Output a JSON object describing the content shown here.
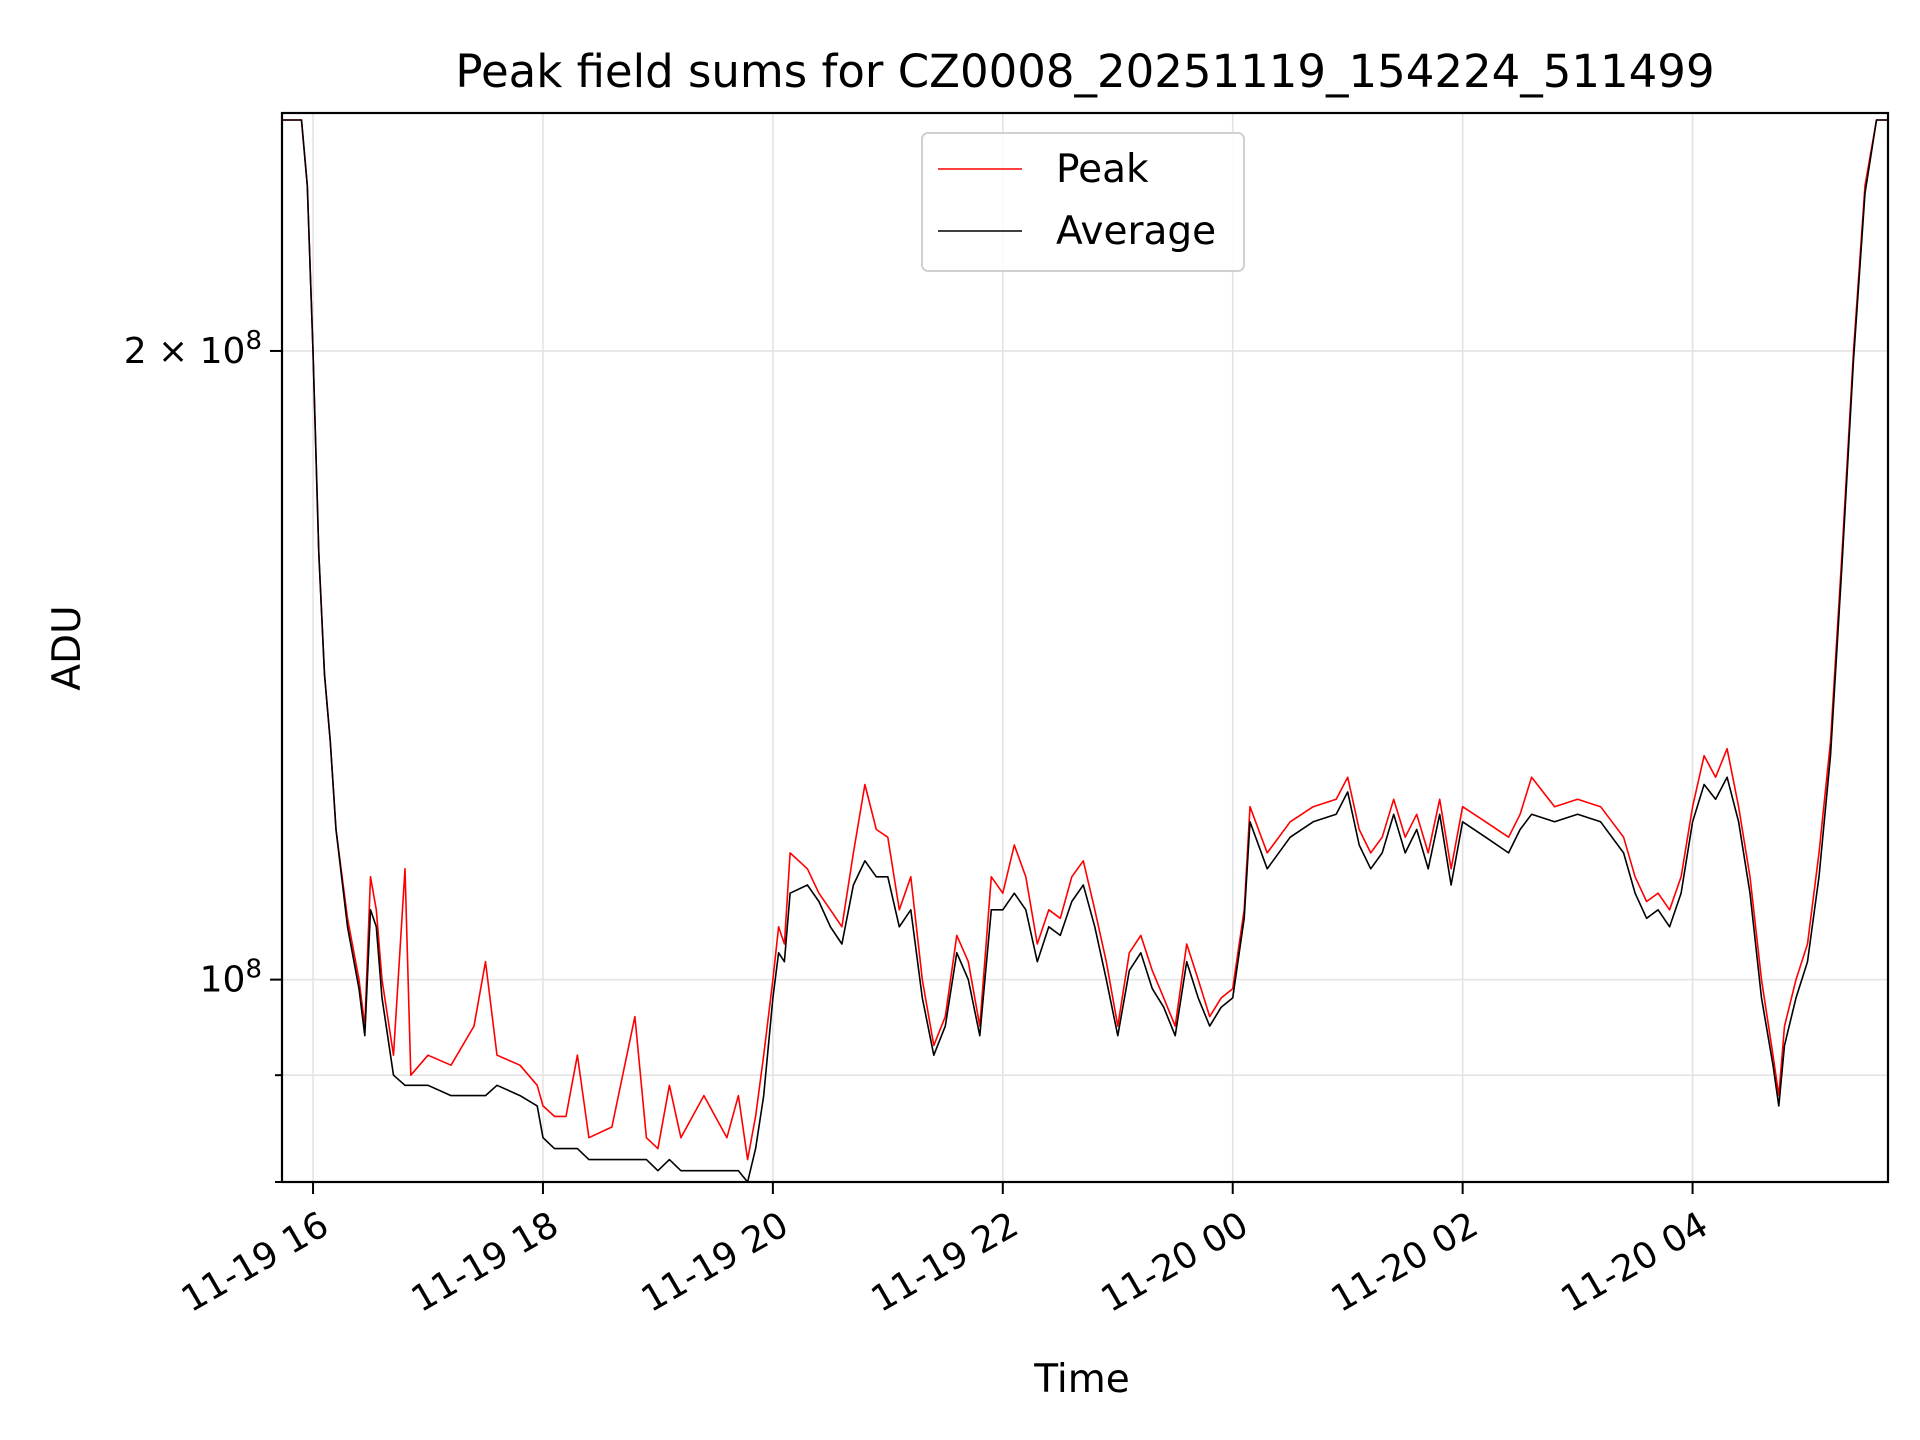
{
  "chart_data": {
    "type": "line",
    "title": "Peak field sums for CZ0008_20251119_154224_511499",
    "xlabel": "Time",
    "ylabel": "ADU",
    "yscale": "log",
    "grid": true,
    "legend_position": "top-center",
    "xlim_hours": [
      15.73,
      29.7
    ],
    "ylim": [
      80000000,
      260000000
    ],
    "x_ticks": [
      {
        "hours": 16,
        "label": "11-19 16"
      },
      {
        "hours": 18,
        "label": "11-19 18"
      },
      {
        "hours": 20,
        "label": "11-19 20"
      },
      {
        "hours": 22,
        "label": "11-19 22"
      },
      {
        "hours": 24,
        "label": "11-20 00"
      },
      {
        "hours": 26,
        "label": "11-20 02"
      },
      {
        "hours": 28,
        "label": "11-20 04"
      }
    ],
    "y_ticks_major": [
      {
        "value": 100000000,
        "label_base": "10",
        "label_exp": "8",
        "label_coef": ""
      },
      {
        "value": 200000000,
        "label_base": "10",
        "label_exp": "8",
        "label_coef": "2 × "
      }
    ],
    "y_ticks_minor": [
      90000000,
      80000000
    ],
    "colors": {
      "peak": "#ff0000",
      "average": "#000000",
      "grid": "#e3e3e3"
    },
    "series": [
      {
        "name": "Peak",
        "color": "#ff0000",
        "points": [
          [
            15.73,
            258000000
          ],
          [
            15.9,
            258000000
          ],
          [
            15.95,
            240000000
          ],
          [
            16.0,
            200000000
          ],
          [
            16.05,
            160000000
          ],
          [
            16.1,
            140000000
          ],
          [
            16.15,
            130000000
          ],
          [
            16.2,
            118000000
          ],
          [
            16.3,
            107000000
          ],
          [
            16.4,
            100000000
          ],
          [
            16.45,
            95000000
          ],
          [
            16.5,
            112000000
          ],
          [
            16.55,
            108000000
          ],
          [
            16.6,
            100000000
          ],
          [
            16.7,
            92000000
          ],
          [
            16.8,
            113000000
          ],
          [
            16.85,
            90000000
          ],
          [
            17.0,
            92000000
          ],
          [
            17.2,
            91000000
          ],
          [
            17.4,
            95000000
          ],
          [
            17.5,
            102000000
          ],
          [
            17.6,
            92000000
          ],
          [
            17.8,
            91000000
          ],
          [
            17.95,
            89000000
          ],
          [
            18.0,
            87000000
          ],
          [
            18.1,
            86000000
          ],
          [
            18.2,
            86000000
          ],
          [
            18.3,
            92000000
          ],
          [
            18.4,
            84000000
          ],
          [
            18.6,
            85000000
          ],
          [
            18.8,
            96000000
          ],
          [
            18.9,
            84000000
          ],
          [
            19.0,
            83000000
          ],
          [
            19.1,
            89000000
          ],
          [
            19.2,
            84000000
          ],
          [
            19.4,
            88000000
          ],
          [
            19.6,
            84000000
          ],
          [
            19.7,
            88000000
          ],
          [
            19.78,
            82000000
          ],
          [
            19.85,
            86000000
          ],
          [
            19.92,
            92000000
          ],
          [
            20.0,
            100000000
          ],
          [
            20.05,
            106000000
          ],
          [
            20.1,
            104000000
          ],
          [
            20.15,
            115000000
          ],
          [
            20.3,
            113000000
          ],
          [
            20.4,
            110000000
          ],
          [
            20.5,
            108000000
          ],
          [
            20.6,
            106000000
          ],
          [
            20.7,
            115000000
          ],
          [
            20.8,
            124000000
          ],
          [
            20.9,
            118000000
          ],
          [
            21.0,
            117000000
          ],
          [
            21.1,
            108000000
          ],
          [
            21.2,
            112000000
          ],
          [
            21.3,
            100000000
          ],
          [
            21.4,
            93000000
          ],
          [
            21.5,
            96000000
          ],
          [
            21.6,
            105000000
          ],
          [
            21.7,
            102000000
          ],
          [
            21.8,
            95000000
          ],
          [
            21.9,
            112000000
          ],
          [
            22.0,
            110000000
          ],
          [
            22.1,
            116000000
          ],
          [
            22.2,
            112000000
          ],
          [
            22.3,
            104000000
          ],
          [
            22.4,
            108000000
          ],
          [
            22.5,
            107000000
          ],
          [
            22.6,
            112000000
          ],
          [
            22.7,
            114000000
          ],
          [
            22.8,
            108000000
          ],
          [
            22.9,
            102000000
          ],
          [
            23.0,
            95000000
          ],
          [
            23.1,
            103000000
          ],
          [
            23.2,
            105000000
          ],
          [
            23.3,
            101000000
          ],
          [
            23.4,
            98000000
          ],
          [
            23.5,
            95000000
          ],
          [
            23.6,
            104000000
          ],
          [
            23.7,
            100000000
          ],
          [
            23.8,
            96000000
          ],
          [
            23.9,
            98000000
          ],
          [
            24.0,
            99000000
          ],
          [
            24.1,
            108000000
          ],
          [
            24.15,
            121000000
          ],
          [
            24.3,
            115000000
          ],
          [
            24.5,
            119000000
          ],
          [
            24.7,
            121000000
          ],
          [
            24.9,
            122000000
          ],
          [
            25.0,
            125000000
          ],
          [
            25.1,
            118000000
          ],
          [
            25.2,
            115000000
          ],
          [
            25.3,
            117000000
          ],
          [
            25.4,
            122000000
          ],
          [
            25.5,
            117000000
          ],
          [
            25.6,
            120000000
          ],
          [
            25.7,
            115000000
          ],
          [
            25.8,
            122000000
          ],
          [
            25.9,
            113000000
          ],
          [
            26.0,
            121000000
          ],
          [
            26.2,
            119000000
          ],
          [
            26.4,
            117000000
          ],
          [
            26.5,
            120000000
          ],
          [
            26.6,
            125000000
          ],
          [
            26.8,
            121000000
          ],
          [
            27.0,
            122000000
          ],
          [
            27.2,
            121000000
          ],
          [
            27.4,
            117000000
          ],
          [
            27.5,
            112000000
          ],
          [
            27.6,
            109000000
          ],
          [
            27.7,
            110000000
          ],
          [
            27.8,
            108000000
          ],
          [
            27.9,
            112000000
          ],
          [
            28.0,
            121000000
          ],
          [
            28.1,
            128000000
          ],
          [
            28.2,
            125000000
          ],
          [
            28.3,
            129000000
          ],
          [
            28.4,
            121000000
          ],
          [
            28.5,
            112000000
          ],
          [
            28.6,
            100000000
          ],
          [
            28.7,
            92000000
          ],
          [
            28.75,
            88000000
          ],
          [
            28.8,
            95000000
          ],
          [
            28.9,
            100000000
          ],
          [
            29.0,
            104000000
          ],
          [
            29.1,
            115000000
          ],
          [
            29.2,
            130000000
          ],
          [
            29.3,
            160000000
          ],
          [
            29.4,
            200000000
          ],
          [
            29.5,
            240000000
          ],
          [
            29.6,
            258000000
          ],
          [
            29.7,
            258000000
          ]
        ]
      },
      {
        "name": "Average",
        "color": "#000000",
        "points": [
          [
            15.73,
            258000000
          ],
          [
            15.9,
            258000000
          ],
          [
            15.95,
            240000000
          ],
          [
            16.0,
            200000000
          ],
          [
            16.05,
            160000000
          ],
          [
            16.1,
            140000000
          ],
          [
            16.15,
            130000000
          ],
          [
            16.2,
            118000000
          ],
          [
            16.3,
            106000000
          ],
          [
            16.4,
            99000000
          ],
          [
            16.45,
            94000000
          ],
          [
            16.5,
            108000000
          ],
          [
            16.55,
            106000000
          ],
          [
            16.6,
            98000000
          ],
          [
            16.7,
            90000000
          ],
          [
            16.8,
            89000000
          ],
          [
            16.85,
            89000000
          ],
          [
            17.0,
            89000000
          ],
          [
            17.2,
            88000000
          ],
          [
            17.4,
            88000000
          ],
          [
            17.5,
            88000000
          ],
          [
            17.6,
            89000000
          ],
          [
            17.8,
            88000000
          ],
          [
            17.95,
            87000000
          ],
          [
            18.0,
            84000000
          ],
          [
            18.1,
            83000000
          ],
          [
            18.2,
            83000000
          ],
          [
            18.3,
            83000000
          ],
          [
            18.4,
            82000000
          ],
          [
            18.6,
            82000000
          ],
          [
            18.8,
            82000000
          ],
          [
            18.9,
            82000000
          ],
          [
            19.0,
            81000000
          ],
          [
            19.1,
            82000000
          ],
          [
            19.2,
            81000000
          ],
          [
            19.4,
            81000000
          ],
          [
            19.6,
            81000000
          ],
          [
            19.7,
            81000000
          ],
          [
            19.78,
            80000000
          ],
          [
            19.85,
            83000000
          ],
          [
            19.92,
            88000000
          ],
          [
            20.0,
            98000000
          ],
          [
            20.05,
            103000000
          ],
          [
            20.1,
            102000000
          ],
          [
            20.15,
            110000000
          ],
          [
            20.3,
            111000000
          ],
          [
            20.4,
            109000000
          ],
          [
            20.5,
            106000000
          ],
          [
            20.6,
            104000000
          ],
          [
            20.7,
            111000000
          ],
          [
            20.8,
            114000000
          ],
          [
            20.9,
            112000000
          ],
          [
            21.0,
            112000000
          ],
          [
            21.1,
            106000000
          ],
          [
            21.2,
            108000000
          ],
          [
            21.3,
            98000000
          ],
          [
            21.4,
            92000000
          ],
          [
            21.5,
            95000000
          ],
          [
            21.6,
            103000000
          ],
          [
            21.7,
            100000000
          ],
          [
            21.8,
            94000000
          ],
          [
            21.9,
            108000000
          ],
          [
            22.0,
            108000000
          ],
          [
            22.1,
            110000000
          ],
          [
            22.2,
            108000000
          ],
          [
            22.3,
            102000000
          ],
          [
            22.4,
            106000000
          ],
          [
            22.5,
            105000000
          ],
          [
            22.6,
            109000000
          ],
          [
            22.7,
            111000000
          ],
          [
            22.8,
            106000000
          ],
          [
            22.9,
            100000000
          ],
          [
            23.0,
            94000000
          ],
          [
            23.1,
            101000000
          ],
          [
            23.2,
            103000000
          ],
          [
            23.3,
            99000000
          ],
          [
            23.4,
            97000000
          ],
          [
            23.5,
            94000000
          ],
          [
            23.6,
            102000000
          ],
          [
            23.7,
            98000000
          ],
          [
            23.8,
            95000000
          ],
          [
            23.9,
            97000000
          ],
          [
            24.0,
            98000000
          ],
          [
            24.1,
            107000000
          ],
          [
            24.15,
            119000000
          ],
          [
            24.3,
            113000000
          ],
          [
            24.5,
            117000000
          ],
          [
            24.7,
            119000000
          ],
          [
            24.9,
            120000000
          ],
          [
            25.0,
            123000000
          ],
          [
            25.1,
            116000000
          ],
          [
            25.2,
            113000000
          ],
          [
            25.3,
            115000000
          ],
          [
            25.4,
            120000000
          ],
          [
            25.5,
            115000000
          ],
          [
            25.6,
            118000000
          ],
          [
            25.7,
            113000000
          ],
          [
            25.8,
            120000000
          ],
          [
            25.9,
            111000000
          ],
          [
            26.0,
            119000000
          ],
          [
            26.2,
            117000000
          ],
          [
            26.4,
            115000000
          ],
          [
            26.5,
            118000000
          ],
          [
            26.6,
            120000000
          ],
          [
            26.8,
            119000000
          ],
          [
            27.0,
            120000000
          ],
          [
            27.2,
            119000000
          ],
          [
            27.4,
            115000000
          ],
          [
            27.5,
            110000000
          ],
          [
            27.6,
            107000000
          ],
          [
            27.7,
            108000000
          ],
          [
            27.8,
            106000000
          ],
          [
            27.9,
            110000000
          ],
          [
            28.0,
            119000000
          ],
          [
            28.1,
            124000000
          ],
          [
            28.2,
            122000000
          ],
          [
            28.3,
            125000000
          ],
          [
            28.4,
            119000000
          ],
          [
            28.5,
            110000000
          ],
          [
            28.6,
            98000000
          ],
          [
            28.7,
            91000000
          ],
          [
            28.75,
            87000000
          ],
          [
            28.8,
            93000000
          ],
          [
            28.9,
            98000000
          ],
          [
            29.0,
            102000000
          ],
          [
            29.1,
            112000000
          ],
          [
            29.2,
            128000000
          ],
          [
            29.3,
            158000000
          ],
          [
            29.4,
            198000000
          ],
          [
            29.5,
            238000000
          ],
          [
            29.6,
            258000000
          ],
          [
            29.7,
            258000000
          ]
        ]
      }
    ]
  }
}
